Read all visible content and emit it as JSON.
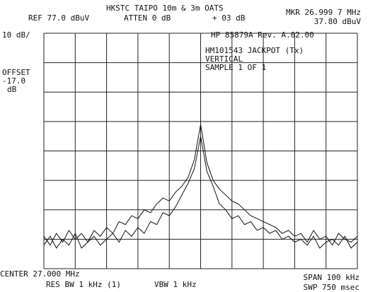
{
  "chart_data": {
    "type": "line",
    "title": "HKSTC TAIPO 10m & 3m OATS",
    "annotations": [
      "REF  77.0 dBuV",
      "ATTEN 0 dB",
      "+ 03 dB",
      "MKR 26.999 7 MHz",
      "37.80 dBuV",
      "10 dB/",
      "HP 85879A Rev. A.02.00",
      "HM101543 JACKPOT (Tx)",
      "VERTICAL",
      "SAMPLE 1 OF 1",
      "OFFSET",
      "-17.0",
      "dB",
      "CENTER 27.000 MHz",
      "RES BW 1 kHz (1)",
      "VBW 1 kHz",
      "SPAN 100 kHz",
      "SWP 750 msec"
    ],
    "x": [
      26.95,
      26.952,
      26.954,
      26.956,
      26.958,
      26.96,
      26.962,
      26.964,
      26.966,
      26.968,
      26.97,
      26.972,
      26.974,
      26.976,
      26.978,
      26.98,
      26.982,
      26.984,
      26.986,
      26.988,
      26.99,
      26.992,
      26.994,
      26.996,
      26.998,
      27.0,
      27.002,
      27.004,
      27.006,
      27.008,
      27.01,
      27.012,
      27.014,
      27.016,
      27.018,
      27.02,
      27.022,
      27.024,
      27.026,
      27.028,
      27.03,
      27.032,
      27.034,
      27.036,
      27.038,
      27.04,
      27.042,
      27.044,
      27.046,
      27.048,
      27.05
    ],
    "series": [
      {
        "color": "#111111",
        "values": [
          8,
          5,
          9,
          6,
          10,
          7,
          9,
          6,
          10,
          8,
          11,
          9,
          13,
          12,
          15,
          14,
          17,
          16,
          19,
          21,
          20,
          23,
          25,
          28,
          34,
          46,
          33,
          27,
          24,
          22,
          20,
          19,
          17,
          15,
          14,
          13,
          12,
          11,
          9,
          10,
          8,
          9,
          6,
          10,
          7,
          8,
          5,
          9,
          7,
          6,
          8
        ]
      },
      {
        "color": "#111111",
        "values": [
          5,
          8,
          4,
          7,
          5,
          9,
          4,
          6,
          8,
          5,
          7,
          9,
          6,
          10,
          8,
          11,
          9,
          13,
          12,
          16,
          15,
          18,
          22,
          26,
          31,
          42,
          30,
          25,
          19,
          17,
          14,
          15,
          12,
          13,
          10,
          11,
          9,
          10,
          7,
          8,
          6,
          7,
          5,
          8,
          4,
          6,
          7,
          5,
          8,
          4,
          6
        ]
      }
    ],
    "xlim": [
      26.95,
      27.05
    ],
    "ylim": [
      -3,
      77
    ]
  }
}
